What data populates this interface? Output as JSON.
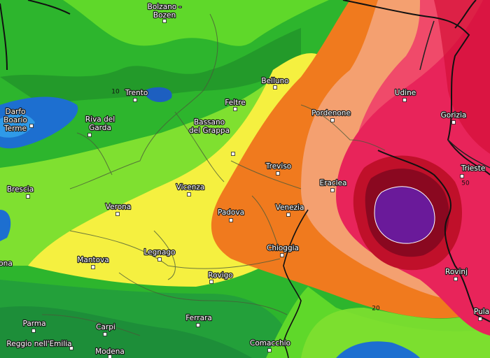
{
  "cities": [
    {
      "lines": [
        "Bolzano -",
        "Bozen"
      ]
    },
    {
      "lines": [
        "Trento"
      ]
    },
    {
      "lines": [
        "Belluno"
      ]
    },
    {
      "lines": [
        "Feltre"
      ]
    },
    {
      "lines": [
        "Udine"
      ]
    },
    {
      "lines": [
        "Darfo",
        "Boario",
        "Terme"
      ]
    },
    {
      "lines": [
        "Riva del",
        "Garda"
      ]
    },
    {
      "lines": [
        "Pordenone"
      ]
    },
    {
      "lines": [
        "Gorizia"
      ]
    },
    {
      "lines": [
        "Bassano",
        "del Grappa"
      ]
    },
    {
      "lines": [
        "Treviso"
      ]
    },
    {
      "lines": [
        "Trieste"
      ]
    },
    {
      "lines": [
        "Brescia"
      ]
    },
    {
      "lines": [
        "Eraclea"
      ]
    },
    {
      "lines": [
        "Vicenza"
      ]
    },
    {
      "lines": [
        "Verona"
      ]
    },
    {
      "lines": [
        "Padova"
      ]
    },
    {
      "lines": [
        "Venezia"
      ]
    },
    {
      "lines": [
        "Chioggia"
      ]
    },
    {
      "lines": [
        "Legnago"
      ]
    },
    {
      "lines": [
        "Mantova"
      ]
    },
    {
      "lines": [
        "ona"
      ]
    },
    {
      "lines": [
        "Rovigo"
      ]
    },
    {
      "lines": [
        "Rovinj"
      ]
    },
    {
      "lines": [
        "Pula"
      ]
    },
    {
      "lines": [
        "Parma"
      ]
    },
    {
      "lines": [
        "Carpi"
      ]
    },
    {
      "lines": [
        "Ferrara"
      ]
    },
    {
      "lines": [
        "Reggio nell'Emilia"
      ]
    },
    {
      "lines": [
        "Modena"
      ]
    },
    {
      "lines": [
        "Comacchio"
      ]
    }
  ],
  "contour_labels": [
    "10",
    "50",
    "20"
  ]
}
